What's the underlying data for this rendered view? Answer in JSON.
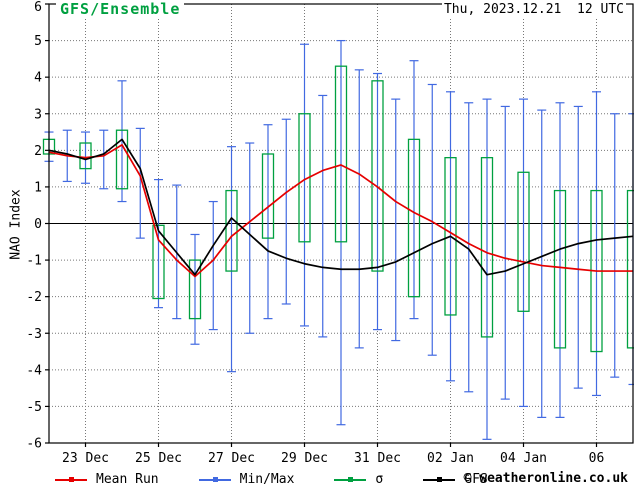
{
  "header": {
    "title": "GFS/Ensemble",
    "run_datetime": "Thu, 2023.12.21  12 UTC"
  },
  "watermark": "© weatheronline.co.uk",
  "chart_data": {
    "type": "line",
    "subtype": "ensemble-box-whisker",
    "title": "GFS/Ensemble",
    "ylabel": "NAO Index",
    "ylim": [
      -6,
      6
    ],
    "grid": "dotted",
    "x_start": "2023-12-22 00 UTC",
    "x_step_hours": 12,
    "x_span_days": 16,
    "y_ticks": [
      6,
      5,
      4,
      3,
      2,
      1,
      0,
      -1,
      -2,
      -3,
      -4,
      -5,
      -6
    ],
    "x_ticks": [
      {
        "day": 1,
        "label": "23 Dec"
      },
      {
        "day": 3,
        "label": "25 Dec"
      },
      {
        "day": 5,
        "label": "27 Dec"
      },
      {
        "day": 7,
        "label": "29 Dec"
      },
      {
        "day": 9,
        "label": "31 Dec"
      },
      {
        "day": 11,
        "label": "02 Jan"
      },
      {
        "day": 13,
        "label": "04 Jan"
      },
      {
        "day": 15,
        "label": "06"
      }
    ],
    "colors": {
      "mean": "#e60000",
      "minmax": "#4169e1",
      "sigma": "#00A040",
      "gfs": "#000000",
      "grid": "#777777",
      "frame": "#000000",
      "title": "#00A040"
    },
    "legend": [
      {
        "label": "Mean Run",
        "color": "#e60000"
      },
      {
        "label": "Min/Max",
        "color": "#4169e1"
      },
      {
        "label": "σ",
        "color": "#00A040"
      },
      {
        "label": "GFS",
        "color": "#000000"
      }
    ],
    "points": [
      {
        "i": 0,
        "max": 2.5,
        "min": 1.7,
        "sigma": [
          2.3,
          1.9
        ],
        "mean": 1.95,
        "gfs": 2.0
      },
      {
        "i": 1,
        "max": 2.55,
        "min": 1.15,
        "sigma": null,
        "mean": 1.85,
        "gfs": 1.9
      },
      {
        "i": 2,
        "max": 2.5,
        "min": 1.1,
        "sigma": [
          2.2,
          1.5
        ],
        "mean": 1.8,
        "gfs": 1.75
      },
      {
        "i": 3,
        "max": 2.55,
        "min": 0.95,
        "sigma": null,
        "mean": 1.85,
        "gfs": 1.9
      },
      {
        "i": 4,
        "max": 3.9,
        "min": 0.6,
        "sigma": [
          2.55,
          0.95
        ],
        "mean": 2.15,
        "gfs": 2.3
      },
      {
        "i": 5,
        "max": 2.6,
        "min": -0.4,
        "sigma": null,
        "mean": 1.3,
        "gfs": 1.5
      },
      {
        "i": 6,
        "max": 1.2,
        "min": -2.3,
        "sigma": [
          -0.05,
          -2.05
        ],
        "mean": -0.45,
        "gfs": -0.2
      },
      {
        "i": 7,
        "max": 1.05,
        "min": -2.6,
        "sigma": null,
        "mean": -1.0,
        "gfs": -0.8
      },
      {
        "i": 8,
        "max": -0.3,
        "min": -3.3,
        "sigma": [
          -1.0,
          -2.6
        ],
        "mean": -1.45,
        "gfs": -1.4
      },
      {
        "i": 9,
        "max": 0.6,
        "min": -2.9,
        "sigma": null,
        "mean": -1.0,
        "gfs": -0.6
      },
      {
        "i": 10,
        "max": 2.1,
        "min": -4.05,
        "sigma": [
          0.9,
          -1.3
        ],
        "mean": -0.35,
        "gfs": 0.15
      },
      {
        "i": 11,
        "max": 2.2,
        "min": -3.0,
        "sigma": null,
        "mean": 0.05,
        "gfs": -0.3
      },
      {
        "i": 12,
        "max": 2.7,
        "min": -2.6,
        "sigma": [
          1.9,
          -0.4
        ],
        "mean": 0.45,
        "gfs": -0.75
      },
      {
        "i": 13,
        "max": 2.85,
        "min": -2.2,
        "sigma": null,
        "mean": 0.85,
        "gfs": -0.95
      },
      {
        "i": 14,
        "max": 4.9,
        "min": -2.8,
        "sigma": [
          3.0,
          -0.5
        ],
        "mean": 1.2,
        "gfs": -1.1
      },
      {
        "i": 15,
        "max": 3.5,
        "min": -3.1,
        "sigma": null,
        "mean": 1.45,
        "gfs": -1.2
      },
      {
        "i": 16,
        "max": 5.0,
        "min": -5.5,
        "sigma": [
          4.3,
          -0.5
        ],
        "mean": 1.6,
        "gfs": -1.25
      },
      {
        "i": 17,
        "max": 4.2,
        "min": -3.4,
        "sigma": null,
        "mean": 1.35,
        "gfs": -1.25
      },
      {
        "i": 18,
        "max": 4.1,
        "min": -2.9,
        "sigma": [
          3.9,
          -1.3
        ],
        "mean": 1.0,
        "gfs": -1.2
      },
      {
        "i": 19,
        "max": 3.4,
        "min": -3.2,
        "sigma": null,
        "mean": 0.6,
        "gfs": -1.05
      },
      {
        "i": 20,
        "max": 4.45,
        "min": -2.6,
        "sigma": [
          2.3,
          -2.0
        ],
        "mean": 0.3,
        "gfs": -0.8
      },
      {
        "i": 21,
        "max": 3.8,
        "min": -3.6,
        "sigma": null,
        "mean": 0.05,
        "gfs": -0.55
      },
      {
        "i": 22,
        "max": 3.6,
        "min": -4.3,
        "sigma": [
          1.8,
          -2.5
        ],
        "mean": -0.25,
        "gfs": -0.35
      },
      {
        "i": 23,
        "max": 3.3,
        "min": -4.6,
        "sigma": null,
        "mean": -0.55,
        "gfs": -0.7
      },
      {
        "i": 24,
        "max": 3.4,
        "min": -5.9,
        "sigma": [
          1.8,
          -3.1
        ],
        "mean": -0.8,
        "gfs": -1.4
      },
      {
        "i": 25,
        "max": 3.2,
        "min": -4.8,
        "sigma": null,
        "mean": -0.95,
        "gfs": -1.3
      },
      {
        "i": 26,
        "max": 3.4,
        "min": -5.0,
        "sigma": [
          1.4,
          -2.4
        ],
        "mean": -1.05,
        "gfs": -1.1
      },
      {
        "i": 27,
        "max": 3.1,
        "min": -5.3,
        "sigma": null,
        "mean": -1.15,
        "gfs": -0.9
      },
      {
        "i": 28,
        "max": 3.3,
        "min": -5.3,
        "sigma": [
          0.9,
          -3.4
        ],
        "mean": -1.2,
        "gfs": -0.7
      },
      {
        "i": 29,
        "max": 3.2,
        "min": -4.5,
        "sigma": null,
        "mean": -1.25,
        "gfs": -0.55
      },
      {
        "i": 30,
        "max": 3.6,
        "min": -4.7,
        "sigma": [
          0.9,
          -3.5
        ],
        "mean": -1.3,
        "gfs": -0.45
      },
      {
        "i": 31,
        "max": 3.0,
        "min": -4.2,
        "sigma": null,
        "mean": -1.3,
        "gfs": -0.4
      },
      {
        "i": 32,
        "max": 3.0,
        "min": -4.4,
        "sigma": [
          0.9,
          -3.4
        ],
        "mean": -1.3,
        "gfs": -0.35
      }
    ]
  }
}
